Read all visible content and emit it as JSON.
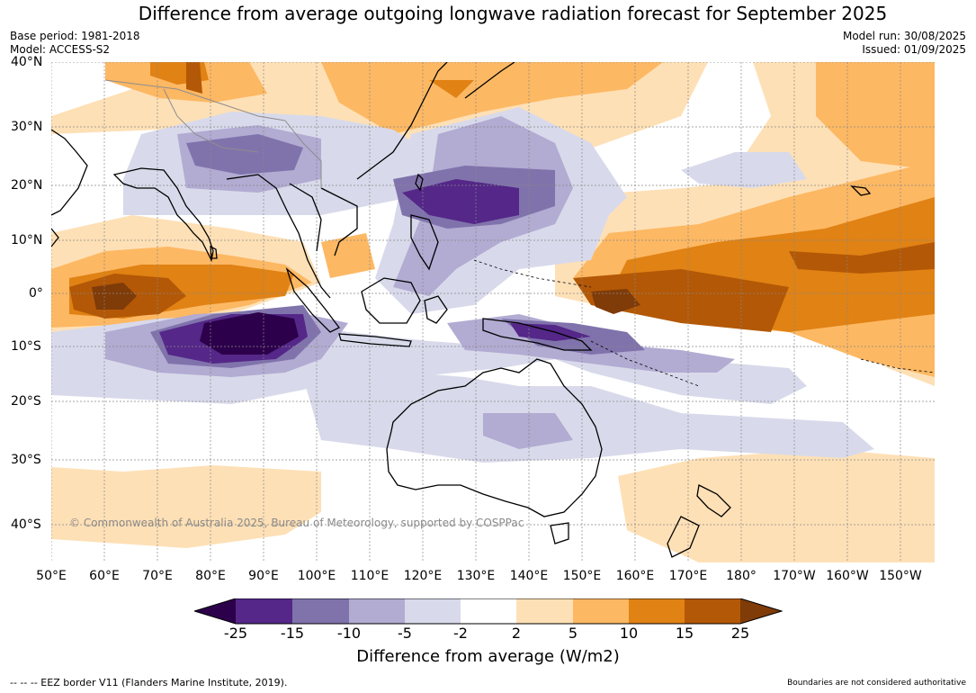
{
  "title": "Difference from average outgoing longwave radiation forecast for September 2025",
  "meta": {
    "base_period": "Base period: 1981-2018",
    "model": "Model: ACCESS-S2",
    "model_run": "Model run: 30/08/2025",
    "issued": "Issued: 01/09/2025"
  },
  "lat_labels": [
    "40°N",
    "30°N",
    "20°N",
    "10°N",
    "0°",
    "10°S",
    "20°S",
    "30°S",
    "40°S"
  ],
  "lon_labels": [
    "50°E",
    "60°E",
    "70°E",
    "80°E",
    "90°E",
    "100°E",
    "110°E",
    "120°E",
    "130°E",
    "140°E",
    "150°E",
    "160°E",
    "170°E",
    "180°",
    "170°W",
    "160°W",
    "150°W"
  ],
  "copyright": "© Commonwealth of Australia 2025, Bureau of Meteorology, supported by COSPPac",
  "colorbar": {
    "ticks": [
      "-25",
      "-15",
      "-10",
      "-5",
      "-2",
      "2",
      "5",
      "10",
      "15",
      "25"
    ],
    "colors": [
      "#2d004b",
      "#542788",
      "#8073ac",
      "#b2abd2",
      "#d8daeb",
      "#ffffff",
      "#fee0b6",
      "#fdb863",
      "#e08214",
      "#b35806",
      "#7f3b08"
    ],
    "label": "Difference from average (W/m2)"
  },
  "footer": {
    "eez": "--  --  -- EEZ border V11 (Flanders Marine Institute, 2019).",
    "disclaimer": "Boundaries are not considered authoritative"
  }
}
